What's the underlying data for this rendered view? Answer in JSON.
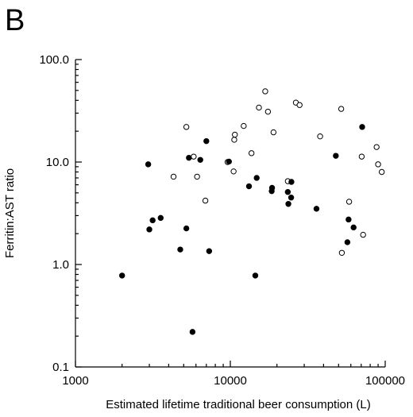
{
  "panel_label": "B",
  "chart_data": {
    "type": "scatter",
    "xlabel": "Estimated lifetime traditional beer consumption (L)",
    "ylabel": "Ferritin:AST ratio",
    "x_scale": "log",
    "y_scale": "log",
    "xlim": [
      1000,
      100000
    ],
    "ylim": [
      0.1,
      100
    ],
    "x_ticks": [
      1000,
      10000,
      100000
    ],
    "x_tick_labels": [
      "1000",
      "10000",
      "100000"
    ],
    "y_ticks": [
      0.1,
      1,
      10,
      100
    ],
    "y_tick_labels": [
      "0.1",
      "1.0",
      "10.0",
      "100.0"
    ],
    "grid": false,
    "legend": "none",
    "series": [
      {
        "marker": "open-circle",
        "points": [
          [
            5200,
            22
          ],
          [
            5800,
            11.3
          ],
          [
            6100,
            7.2
          ],
          [
            6900,
            4.2
          ],
          [
            4300,
            7.2
          ],
          [
            9600,
            10
          ],
          [
            10500,
            8.1
          ],
          [
            10600,
            16.5
          ],
          [
            10700,
            18.5
          ],
          [
            12200,
            22.5
          ],
          [
            13700,
            12.2
          ],
          [
            15300,
            34
          ],
          [
            16800,
            49
          ],
          [
            17500,
            31
          ],
          [
            19000,
            19.5
          ],
          [
            23500,
            6.5
          ],
          [
            26500,
            38
          ],
          [
            28000,
            36
          ],
          [
            38000,
            17.8
          ],
          [
            52000,
            33
          ],
          [
            52500,
            1.3
          ],
          [
            58500,
            4.1
          ],
          [
            70500,
            11.3
          ],
          [
            72000,
            1.95
          ],
          [
            88000,
            14
          ],
          [
            90000,
            9.5
          ],
          [
            95000,
            8
          ]
        ]
      },
      {
        "marker": "filled-circle",
        "points": [
          [
            2000,
            0.78
          ],
          [
            2950,
            9.5
          ],
          [
            3000,
            2.2
          ],
          [
            3150,
            2.7
          ],
          [
            3550,
            2.85
          ],
          [
            4750,
            1.4
          ],
          [
            5200,
            2.25
          ],
          [
            5400,
            11
          ],
          [
            5700,
            0.22
          ],
          [
            6400,
            10.5
          ],
          [
            7000,
            16
          ],
          [
            7300,
            1.35
          ],
          [
            9800,
            10.1
          ],
          [
            13200,
            5.8
          ],
          [
            14500,
            0.78
          ],
          [
            14800,
            7
          ],
          [
            18500,
            5.2
          ],
          [
            18600,
            5.6
          ],
          [
            23500,
            5.1
          ],
          [
            23700,
            3.9
          ],
          [
            24700,
            4.5
          ],
          [
            24800,
            6.4
          ],
          [
            36000,
            3.5
          ],
          [
            48000,
            11.5
          ],
          [
            57000,
            1.65
          ],
          [
            58000,
            2.75
          ],
          [
            62500,
            2.3
          ],
          [
            71000,
            22
          ]
        ]
      }
    ]
  }
}
